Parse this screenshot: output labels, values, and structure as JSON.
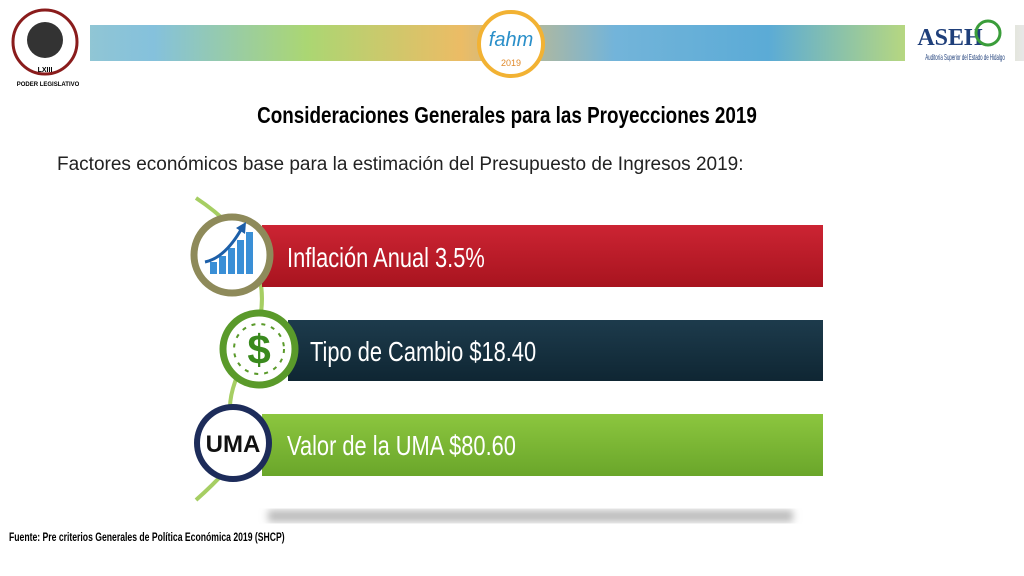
{
  "header": {
    "left_logo": {
      "caption": "PODER LEGISLATIVO",
      "legislature": "LXIII"
    },
    "center_logo": {
      "name": "fahm",
      "year": "2019"
    },
    "right_logo": {
      "name": "ASEH",
      "subtitle": "Auditoría Superior del Estado de Hidalgo"
    }
  },
  "title": "Consideraciones Generales para las Proyecciones 2019",
  "subtitle": "Factores económicos base para la estimación del Presupuesto de Ingresos 2019:",
  "items": [
    {
      "label": "Inflación Anual 3.5%"
    },
    {
      "label": "Tipo de Cambio $18.40",
      "icon": "$"
    },
    {
      "label": "Valor de la UMA $80.60",
      "icon": "UMA"
    }
  ],
  "source": "Fuente: Pre criterios Generales de Política Económica 2019 (SHCP)"
}
